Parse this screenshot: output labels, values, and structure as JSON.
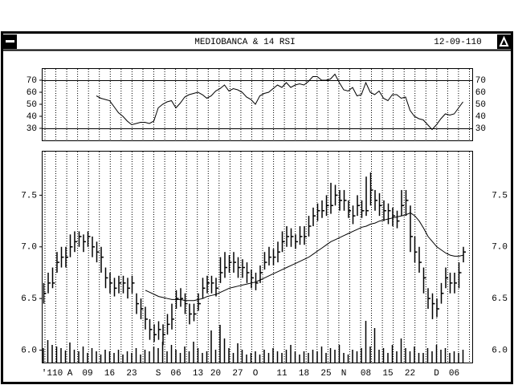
{
  "window": {
    "title": "MEDIOBANCA & 14 RSI",
    "date": "12-09-110"
  },
  "chart_data": [
    {
      "type": "line",
      "color": "#000000",
      "ylim": [
        20,
        80
      ],
      "yticks": [
        30,
        40,
        50,
        60,
        70
      ],
      "hlines": [
        30,
        70
      ],
      "values": [
        null,
        null,
        null,
        null,
        null,
        null,
        null,
        null,
        null,
        null,
        null,
        null,
        57,
        55,
        54,
        53,
        48,
        43,
        40,
        36,
        33,
        34,
        35,
        35,
        34,
        36,
        47,
        50,
        52,
        53,
        47,
        51,
        56,
        58,
        59,
        60,
        58,
        55,
        57,
        61,
        63,
        66,
        61,
        63,
        62,
        60,
        56,
        54,
        50,
        57,
        59,
        60,
        63,
        66,
        64,
        68,
        64,
        66,
        67,
        66,
        69,
        73,
        73,
        70,
        70,
        71,
        75,
        68,
        62,
        61,
        64,
        57,
        58,
        68,
        60,
        58,
        61,
        55,
        53,
        58,
        58,
        55,
        56,
        45,
        40,
        38,
        37,
        33,
        29,
        33,
        38,
        42,
        41,
        42,
        47,
        52
      ]
    },
    {
      "type": "hlc",
      "color": "#000000",
      "ylim": [
        5.88,
        7.93
      ],
      "yticks": [
        {
          "value": 6,
          "label": "6.0"
        },
        6.5,
        {
          "value": 7,
          "label": "7.0"
        },
        7.5
      ],
      "y2lim": [
        0,
        100
      ],
      "categories": [
        null,
        null,
        "'110",
        null,
        null,
        null,
        "A",
        null,
        null,
        null,
        "09",
        null,
        null,
        null,
        null,
        "16",
        null,
        null,
        null,
        null,
        "23",
        null,
        null,
        null,
        null,
        null,
        "S",
        null,
        null,
        null,
        "06",
        null,
        null,
        null,
        null,
        "13",
        null,
        null,
        null,
        "20",
        null,
        null,
        null,
        null,
        "27",
        null,
        null,
        null,
        "O",
        null,
        null,
        null,
        null,
        null,
        "11",
        null,
        null,
        null,
        null,
        "18",
        null,
        null,
        null,
        null,
        "25",
        null,
        null,
        null,
        "N",
        null,
        null,
        null,
        null,
        "08",
        null,
        null,
        null,
        null,
        "15",
        null,
        null,
        null,
        null,
        "22",
        null,
        null,
        null,
        null,
        null,
        "D",
        null,
        null,
        null,
        "06",
        null,
        null
      ],
      "high": [
        6.65,
        6.75,
        6.8,
        6.95,
        7.0,
        7.0,
        7.12,
        7.15,
        7.15,
        7.12,
        7.15,
        7.1,
        7.05,
        7.0,
        6.8,
        6.75,
        6.7,
        6.72,
        6.72,
        6.7,
        6.72,
        6.55,
        6.5,
        6.42,
        6.3,
        6.25,
        6.28,
        6.25,
        6.35,
        6.45,
        6.58,
        6.6,
        6.55,
        6.45,
        6.45,
        6.55,
        6.7,
        6.72,
        6.72,
        6.7,
        6.9,
        6.95,
        6.92,
        6.95,
        6.9,
        6.88,
        6.85,
        6.78,
        6.75,
        6.82,
        6.95,
        7.0,
        6.98,
        7.05,
        7.15,
        7.2,
        7.18,
        7.12,
        7.2,
        7.2,
        7.3,
        7.38,
        7.42,
        7.45,
        7.5,
        7.62,
        7.6,
        7.55,
        7.55,
        7.45,
        7.4,
        7.5,
        7.45,
        7.68,
        7.72,
        7.55,
        7.52,
        7.45,
        7.42,
        7.38,
        7.35,
        7.55,
        7.55,
        7.4,
        7.1,
        7.0,
        6.8,
        6.6,
        6.55,
        6.5,
        6.65,
        6.8,
        6.75,
        6.75,
        6.85,
        7.0
      ],
      "low": [
        6.45,
        6.55,
        6.6,
        6.75,
        6.8,
        6.8,
        6.9,
        6.95,
        7.0,
        6.95,
        7.0,
        6.9,
        6.85,
        6.75,
        6.6,
        6.55,
        6.52,
        6.55,
        6.55,
        6.5,
        6.55,
        6.35,
        6.3,
        6.2,
        6.1,
        6.08,
        6.1,
        6.05,
        6.15,
        6.2,
        6.4,
        6.42,
        6.35,
        6.25,
        6.28,
        6.38,
        6.5,
        6.55,
        6.55,
        6.52,
        6.65,
        6.7,
        6.75,
        6.75,
        6.7,
        6.7,
        6.65,
        6.6,
        6.58,
        6.65,
        6.78,
        6.82,
        6.82,
        6.85,
        6.95,
        7.0,
        7.0,
        6.98,
        7.02,
        7.02,
        7.1,
        7.2,
        7.25,
        7.28,
        7.3,
        7.32,
        7.4,
        7.35,
        7.35,
        7.28,
        7.22,
        7.3,
        7.28,
        7.3,
        7.4,
        7.35,
        7.3,
        7.25,
        7.22,
        7.2,
        7.18,
        7.3,
        7.3,
        6.95,
        6.85,
        6.75,
        6.55,
        6.4,
        6.3,
        6.32,
        6.45,
        6.6,
        6.55,
        6.55,
        6.6,
        6.85
      ],
      "close": [
        6.55,
        6.65,
        6.65,
        6.85,
        6.9,
        6.9,
        7.0,
        7.05,
        7.1,
        7.05,
        7.1,
        7.0,
        6.95,
        6.9,
        6.7,
        6.65,
        6.6,
        6.65,
        6.65,
        6.6,
        6.65,
        6.45,
        6.4,
        6.3,
        6.2,
        6.15,
        6.2,
        6.15,
        6.25,
        6.3,
        6.5,
        6.5,
        6.45,
        6.35,
        6.35,
        6.45,
        6.6,
        6.65,
        6.65,
        6.6,
        6.75,
        6.8,
        6.85,
        6.85,
        6.8,
        6.8,
        6.75,
        6.7,
        6.65,
        6.75,
        6.85,
        6.9,
        6.9,
        6.95,
        7.05,
        7.1,
        7.1,
        7.05,
        7.1,
        7.1,
        7.2,
        7.3,
        7.35,
        7.35,
        7.4,
        7.4,
        7.5,
        7.45,
        7.45,
        7.35,
        7.3,
        7.4,
        7.35,
        7.35,
        7.55,
        7.45,
        7.4,
        7.35,
        7.35,
        7.3,
        7.25,
        7.4,
        7.45,
        7.1,
        6.95,
        6.85,
        6.7,
        6.5,
        6.45,
        6.4,
        6.55,
        6.7,
        6.65,
        6.65,
        6.75,
        6.95
      ],
      "moving_average": [
        null,
        null,
        null,
        null,
        null,
        null,
        null,
        null,
        null,
        null,
        null,
        null,
        null,
        null,
        null,
        null,
        null,
        null,
        null,
        null,
        null,
        null,
        null,
        6.58,
        6.56,
        6.54,
        6.52,
        6.51,
        6.5,
        6.49,
        6.49,
        6.49,
        6.48,
        6.48,
        6.48,
        6.49,
        6.5,
        6.52,
        6.53,
        6.54,
        6.56,
        6.58,
        6.6,
        6.61,
        6.62,
        6.63,
        6.64,
        6.65,
        6.66,
        6.68,
        6.7,
        6.72,
        6.74,
        6.76,
        6.78,
        6.8,
        6.82,
        6.84,
        6.86,
        6.88,
        6.9,
        6.93,
        6.96,
        6.99,
        7.02,
        7.05,
        7.07,
        7.09,
        7.11,
        7.13,
        7.15,
        7.17,
        7.19,
        7.2,
        7.22,
        7.23,
        7.25,
        7.26,
        7.27,
        7.28,
        7.29,
        7.3,
        7.31,
        7.33,
        7.3,
        7.25,
        7.18,
        7.1,
        7.05,
        7.0,
        6.97,
        6.94,
        6.92,
        6.91,
        6.91,
        6.92
      ],
      "volume": [
        18,
        28,
        22,
        20,
        18,
        15,
        25,
        16,
        14,
        20,
        12,
        18,
        14,
        10,
        16,
        14,
        12,
        16,
        10,
        14,
        12,
        18,
        10,
        16,
        14,
        20,
        18,
        26,
        14,
        22,
        16,
        12,
        20,
        14,
        26,
        18,
        12,
        14,
        40,
        16,
        47,
        30,
        18,
        12,
        24,
        16,
        10,
        12,
        14,
        10,
        16,
        12,
        18,
        14,
        12,
        16,
        22,
        14,
        10,
        14,
        12,
        16,
        14,
        20,
        12,
        18,
        16,
        22,
        12,
        10,
        16,
        14,
        18,
        52,
        20,
        43,
        16,
        18,
        12,
        22,
        14,
        30,
        18,
        14,
        20,
        12,
        12,
        18,
        14,
        22,
        16,
        18,
        12,
        14,
        12,
        16
      ]
    }
  ]
}
